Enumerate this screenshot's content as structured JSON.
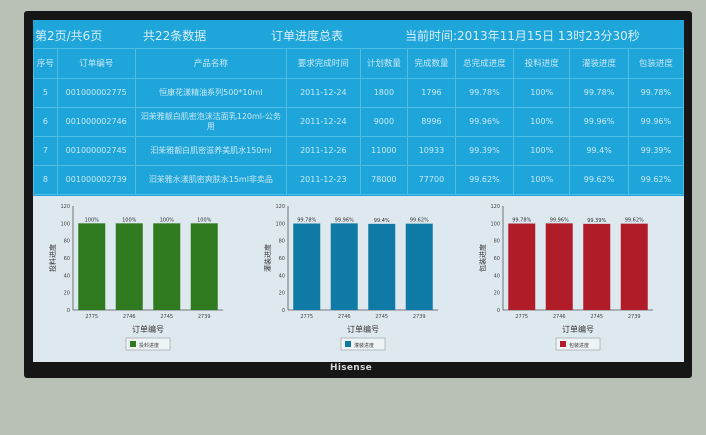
{
  "header": {
    "page_info": "第2页/共6页",
    "record_count": "共22条数据",
    "title": "订单进度总表",
    "current_time": "当前时间:2013年11月15日 13时23分30秒"
  },
  "table": {
    "columns": [
      "序号",
      "订单编号",
      "产品名称",
      "要求完成时间",
      "计划数量",
      "完成数量",
      "总完成进度",
      "投料进度",
      "灌装进度",
      "包装进度"
    ],
    "rows": [
      [
        "5",
        "001000002775",
        "恒康花漾精油系列500*10ml",
        "2011-12-24",
        "1800",
        "1796",
        "99.78%",
        "100%",
        "99.78%",
        "99.78%"
      ],
      [
        "6",
        "001000002746",
        "汩茉雅靓白肌密泡沫洁面乳120ml-公务用",
        "2011-12-24",
        "9000",
        "8996",
        "99.96%",
        "100%",
        "99.96%",
        "99.96%"
      ],
      [
        "7",
        "001000002745",
        "汩茉雅靓白肌密滋养美肌水150ml",
        "2011-12-26",
        "11000",
        "10933",
        "99.39%",
        "100%",
        "99.4%",
        "99.39%"
      ],
      [
        "8",
        "001000002739",
        "汩茉雅水漾肌密爽肤水15ml非卖品",
        "2011-12-23",
        "78000",
        "77700",
        "99.62%",
        "100%",
        "99.62%",
        "99.62%"
      ]
    ]
  },
  "brand": "Hisense",
  "chart_data": [
    {
      "type": "bar",
      "categories": [
        "2775",
        "2746",
        "2745",
        "2739"
      ],
      "values": [
        100,
        100,
        100,
        100
      ],
      "data_labels": [
        "100%",
        "100%",
        "100%",
        "100%"
      ],
      "xlabel": "订单编号",
      "ylabel": "投料进度",
      "legend": "投料进度",
      "legend_placement": "bottom",
      "ylim": [
        0,
        120
      ],
      "yticks": [
        0,
        20,
        40,
        60,
        80,
        100,
        120
      ],
      "color": "#2f7a1f"
    },
    {
      "type": "bar",
      "categories": [
        "2775",
        "2746",
        "2745",
        "2739"
      ],
      "values": [
        99.78,
        99.96,
        99.4,
        99.62
      ],
      "data_labels": [
        "99.78%",
        "99.96%",
        "99.4%",
        "99.62%"
      ],
      "xlabel": "订单编号",
      "ylabel": "灌装进度",
      "legend": "灌装进度",
      "legend_placement": "bottom",
      "ylim": [
        0,
        120
      ],
      "yticks": [
        0,
        20,
        40,
        60,
        80,
        100,
        120
      ],
      "color": "#0f7aa6"
    },
    {
      "type": "bar",
      "categories": [
        "2775",
        "2746",
        "2745",
        "2739"
      ],
      "values": [
        99.78,
        99.96,
        99.39,
        99.62
      ],
      "data_labels": [
        "99.78%",
        "99.96%",
        "99.39%",
        "99.62%"
      ],
      "xlabel": "订单编号",
      "ylabel": "包装进度",
      "legend": "包装进度",
      "legend_placement": "bottom",
      "ylim": [
        0,
        120
      ],
      "yticks": [
        0,
        20,
        40,
        60,
        80,
        100,
        120
      ],
      "color": "#b01c28"
    }
  ]
}
